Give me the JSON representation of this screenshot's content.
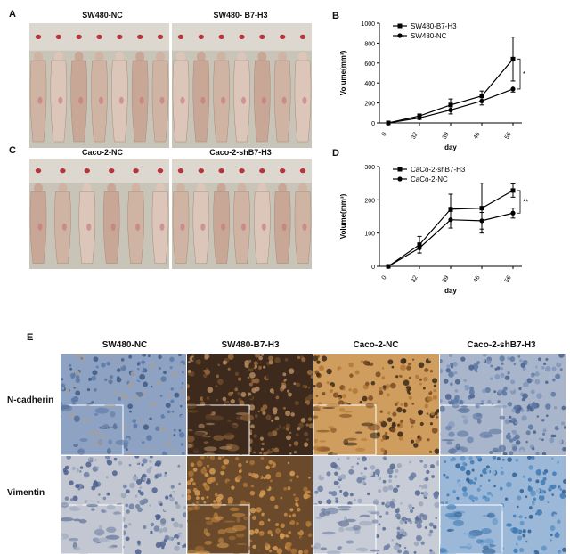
{
  "panels": {
    "A": {
      "letter": "A",
      "labels": [
        "SW480-NC",
        "SW480- B7-H3"
      ]
    },
    "B": {
      "letter": "B"
    },
    "C": {
      "letter": "C",
      "labels": [
        "Caco-2-NC",
        "Caco-2-shB7-H3"
      ]
    },
    "D": {
      "letter": "D"
    },
    "E": {
      "letter": "E",
      "columns": [
        "SW480-NC",
        "SW480-B7-H3",
        "Caco-2-NC",
        "Caco-2-shB7-H3"
      ],
      "rows": [
        "N-cadherin",
        "Vimentin"
      ]
    }
  },
  "chart_data": [
    {
      "type": "line",
      "panel": "B",
      "x": [
        0,
        32,
        39,
        46,
        56
      ],
      "xlabel": "day",
      "ylabel": "Volume(mm³)",
      "ylim": [
        0,
        1000
      ],
      "yticks": [
        0,
        200,
        400,
        600,
        800,
        1000
      ],
      "series": [
        {
          "name": "SW480-B7-H3",
          "marker": "square",
          "values": [
            0,
            70,
            180,
            270,
            640
          ],
          "err": [
            0,
            20,
            60,
            50,
            220
          ]
        },
        {
          "name": "SW480-NC",
          "marker": "circle",
          "values": [
            0,
            50,
            130,
            220,
            340
          ],
          "err": [
            0,
            15,
            40,
            40,
            30
          ]
        }
      ],
      "annotation": "*",
      "legend": "top-left"
    },
    {
      "type": "line",
      "panel": "D",
      "x": [
        0,
        32,
        39,
        46,
        56
      ],
      "xlabel": "day",
      "ylabel": "Volume(mm³)",
      "ylim": [
        0,
        300
      ],
      "yticks": [
        0,
        100,
        200,
        300
      ],
      "series": [
        {
          "name": "CaCo-2-shB7-H3",
          "marker": "square",
          "values": [
            0,
            65,
            172,
            175,
            228
          ],
          "err": [
            0,
            25,
            45,
            75,
            20
          ]
        },
        {
          "name": "CaCo-2-NC",
          "marker": "circle",
          "values": [
            0,
            55,
            140,
            137,
            160
          ],
          "err": [
            0,
            15,
            25,
            25,
            15
          ]
        }
      ],
      "annotation": "**",
      "legend": "top-left"
    }
  ],
  "colors": {
    "photo_bg": "#c9c4b8",
    "mouse_skin": "#d8c1b2",
    "ihc_blue": "#4f6c99",
    "ihc_brown": "#a9702f",
    "ihc_light": "#aab2c4"
  }
}
